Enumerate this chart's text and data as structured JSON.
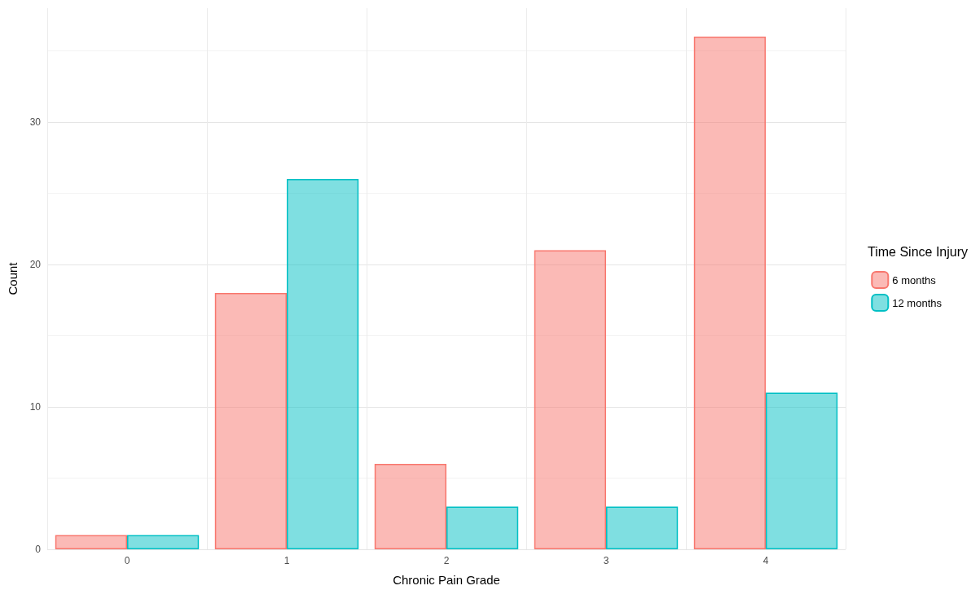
{
  "chart_data": {
    "type": "bar",
    "xlabel": "Chronic Pain Grade",
    "ylabel": "Count",
    "legend_title": "Time Since Injury",
    "categories": [
      "0",
      "1",
      "2",
      "3",
      "4"
    ],
    "series": [
      {
        "name": "6 months",
        "color": "#f8766d",
        "values": [
          1,
          18,
          6,
          21,
          36
        ]
      },
      {
        "name": "12 months",
        "color": "#00bfc4",
        "values": [
          1,
          26,
          3,
          3,
          11
        ]
      }
    ],
    "ylim": [
      0,
      38
    ],
    "yticks": [
      0,
      10,
      20,
      30
    ],
    "grid": true,
    "legend": "right"
  }
}
